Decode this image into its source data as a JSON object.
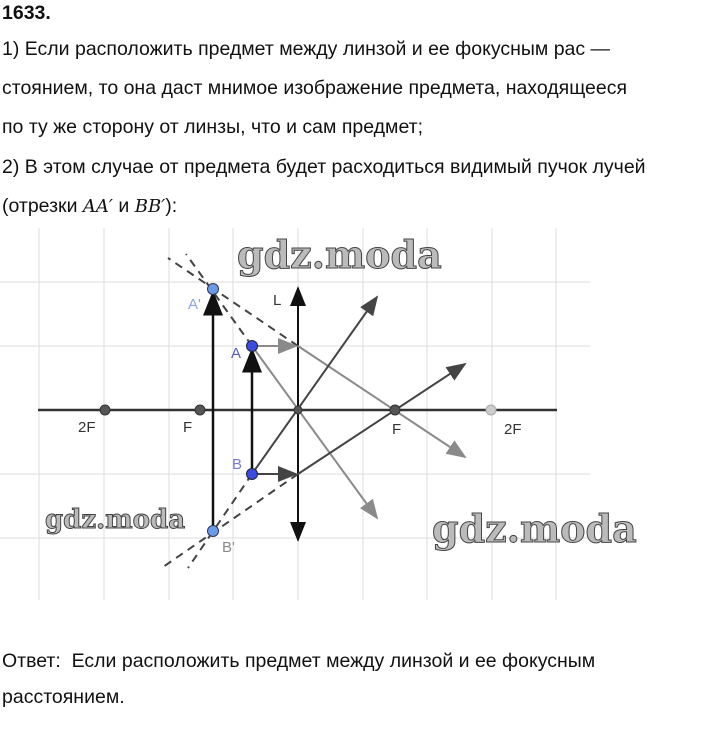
{
  "problem_number": "1633",
  "lines": [
    "1) Если расположить предмет между линзой и ее фокусным рас —",
    "стоянием, то она даст мнимое изображение предмета, находящееся",
    "по ту же сторону от линзы, что и сам предмет;",
    "2) В этом случае от предмета будет расходиться видимый пучок лучей"
  ],
  "segments_line": {
    "prefix": "(отрезки ",
    "seg1": "AA′",
    "conj": " и ",
    "seg2": "BB′",
    "suffix": "):"
  },
  "diagram": {
    "labels": {
      "lens": "L",
      "f_left": "F",
      "f_right": "F",
      "twof_left": "2F",
      "twof_right": "2F",
      "a": "A",
      "b": "B",
      "a_img": "A'",
      "b_img": "B'"
    },
    "watermark": "gdz.moda",
    "colors": {
      "point": "#3a4be0",
      "image_point": "#6a9be8",
      "ray_dark": "#444444",
      "ray_light": "#8a8a8a"
    }
  },
  "answer": {
    "label": "Ответ:",
    "text": "Если расположить предмет между линзой и ее фокусным",
    "text2": "расстоянием."
  }
}
